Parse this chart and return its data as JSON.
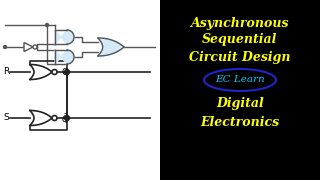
{
  "bg_color": "#000000",
  "circuit_bg": "#ffffff",
  "title_lines": [
    "Asynchronous",
    "Sequential",
    "Circuit Design"
  ],
  "subtitle_lines": [
    "Digital",
    "Electronics"
  ],
  "brand": "EC Learn",
  "title_color": "#ffff00",
  "brand_color": "#00ccff",
  "subtitle_color": "#ffff00",
  "brand_border": "#2222cc",
  "gate_fc": "#d4eaf8",
  "gate_lc": "#555555",
  "wire_color": "#555555",
  "latch_wire": "#222222"
}
